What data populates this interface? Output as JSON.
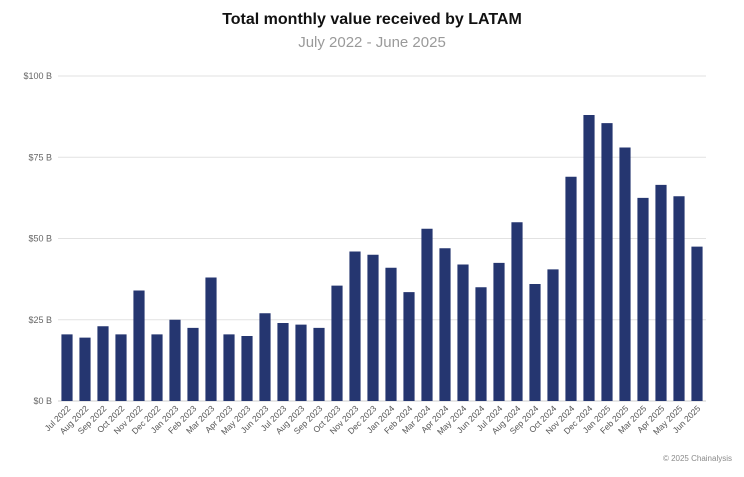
{
  "chart_data": {
    "type": "bar",
    "title": "Total monthly value received by LATAM",
    "subtitle": "July 2022 - June 2025",
    "xlabel": "",
    "ylabel": "",
    "ylim": [
      0,
      100
    ],
    "yticks": [
      {
        "value": 0,
        "label": "$0 B"
      },
      {
        "value": 25,
        "label": "$25 B"
      },
      {
        "value": 50,
        "label": "$50 B"
      },
      {
        "value": 75,
        "label": "$75 B"
      },
      {
        "value": 100,
        "label": "$100 B"
      }
    ],
    "grid": true,
    "bar_color": "#253670",
    "categories": [
      "Jul 2022",
      "Aug 2022",
      "Sep 2022",
      "Oct 2022",
      "Nov 2022",
      "Dec 2022",
      "Jan 2023",
      "Feb 2023",
      "Mar 2023",
      "Apr 2023",
      "May 2023",
      "Jun 2023",
      "Jul 2023",
      "Aug 2023",
      "Sep 2023",
      "Oct 2023",
      "Nov 2023",
      "Dec 2023",
      "Jan 2024",
      "Feb 2024",
      "Mar 2024",
      "Apr 2024",
      "May 2024",
      "Jun 2024",
      "Jul 2024",
      "Aug 2024",
      "Sep 2024",
      "Oct 2024",
      "Nov 2024",
      "Dec 2024",
      "Jan 2025",
      "Feb 2025",
      "Mar 2025",
      "Apr 2025",
      "May 2025",
      "Jun 2025"
    ],
    "values": [
      20.5,
      19.5,
      23,
      20.5,
      34,
      20.5,
      25,
      22.5,
      38,
      20.5,
      20,
      27,
      24,
      23.5,
      22.5,
      35.5,
      46,
      45,
      41,
      33.5,
      53,
      47,
      42,
      35,
      42.5,
      55,
      36,
      40.5,
      69,
      88,
      85.5,
      78,
      62.5,
      66.5,
      63,
      47.5
    ],
    "credit": "© 2025 Chainalysis"
  }
}
